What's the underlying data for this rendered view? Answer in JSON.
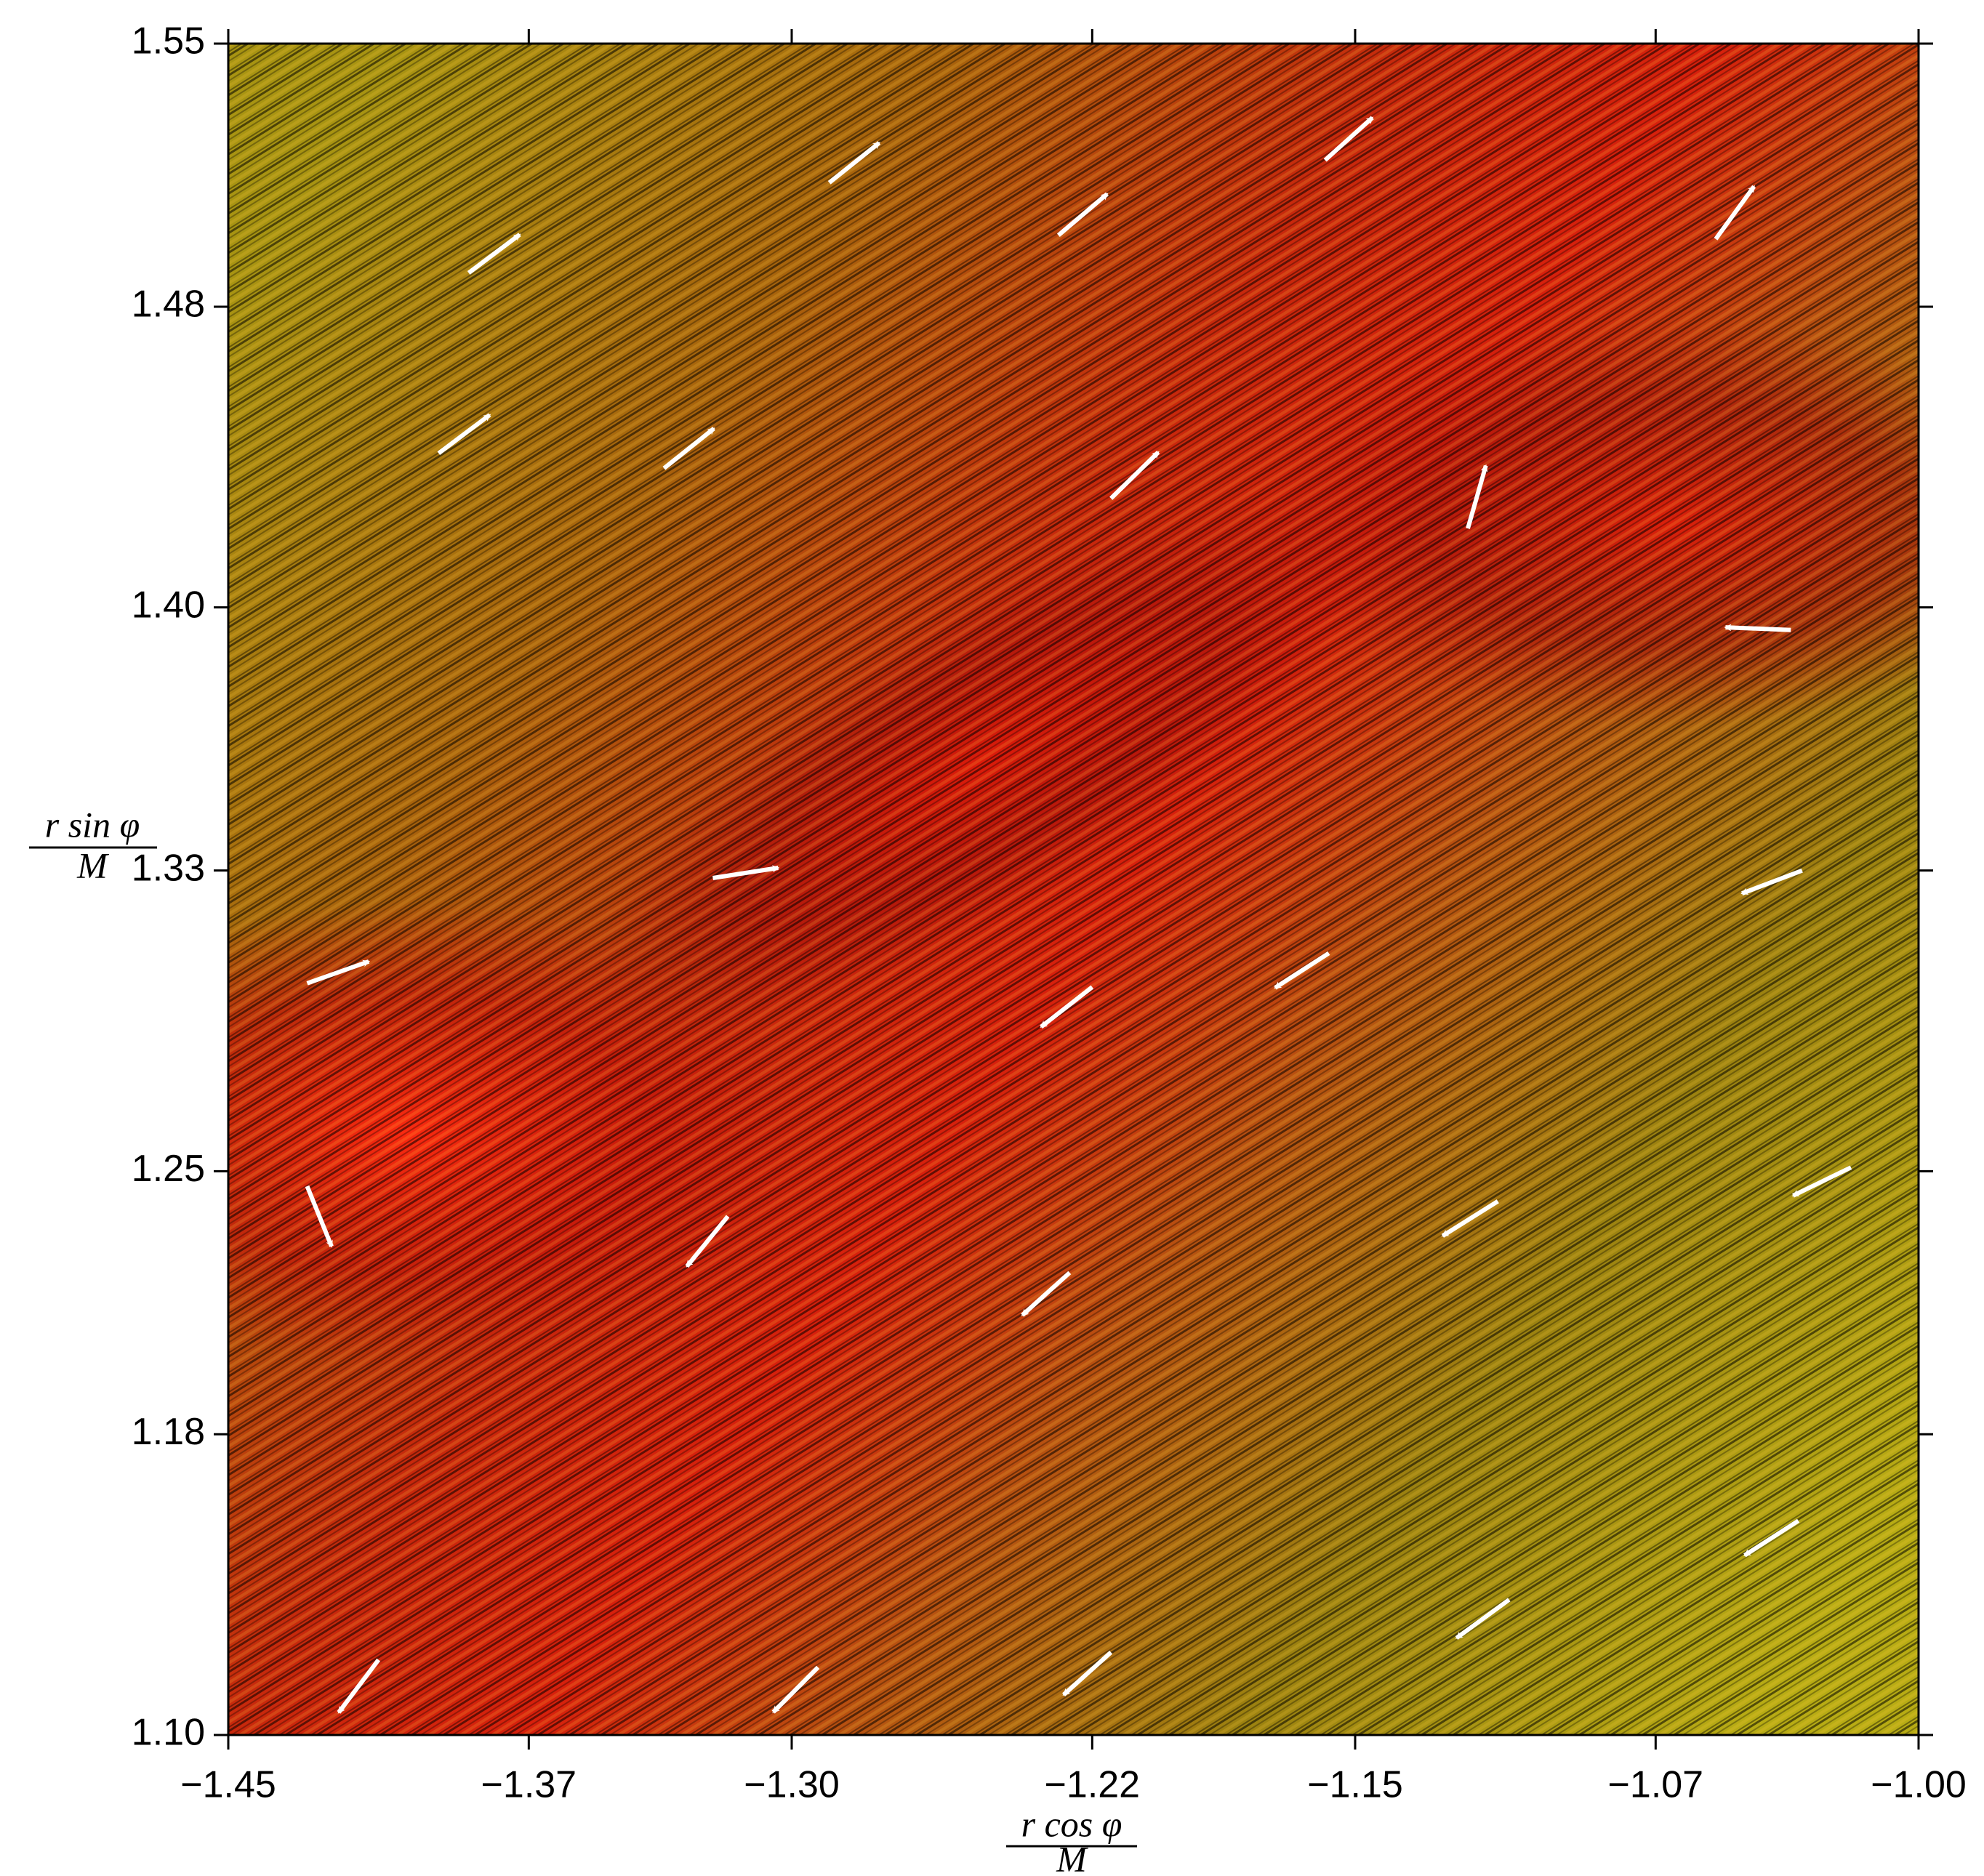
{
  "chart_data": {
    "type": "vector_field",
    "xlabel_numerator": "r cos φ",
    "xlabel_denominator": "M",
    "ylabel_numerator": "r sin φ",
    "ylabel_denominator": "M",
    "xlim": [
      -1.45,
      -1.0
    ],
    "ylim": [
      1.1,
      1.55
    ],
    "xticks": [
      {
        "value": -1.45,
        "label": "−1.45"
      },
      {
        "value": -1.37,
        "label": "−1.37"
      },
      {
        "value": -1.3,
        "label": "−1.30"
      },
      {
        "value": -1.22,
        "label": "−1.22"
      },
      {
        "value": -1.15,
        "label": "−1.15"
      },
      {
        "value": -1.07,
        "label": "−1.07"
      },
      {
        "value": -1.0,
        "label": "−1.00"
      }
    ],
    "yticks": [
      {
        "value": 1.1,
        "label": "1.10"
      },
      {
        "value": 1.18,
        "label": "1.18"
      },
      {
        "value": 1.25,
        "label": "1.25"
      },
      {
        "value": 1.33,
        "label": "1.33"
      },
      {
        "value": 1.4,
        "label": "1.40"
      },
      {
        "value": 1.48,
        "label": "1.48"
      },
      {
        "value": 1.55,
        "label": "1.55"
      }
    ],
    "arrow_color": "#ffffff",
    "arrows": {
      "x": [
        -1.386,
        -1.29,
        -1.229,
        -1.158,
        -1.054,
        -1.394,
        -1.334,
        -1.215,
        -1.12,
        -1.034,
        -1.321,
        -1.429,
        -1.031,
        -1.157,
        -1.22,
        -1.429,
        -1.317,
        -1.112,
        -1.018,
        -1.226,
        -1.032,
        -1.109,
        -1.215,
        -1.293,
        -1.41
      ],
      "y": [
        1.489,
        1.513,
        1.499,
        1.519,
        1.498,
        1.441,
        1.437,
        1.429,
        1.421,
        1.394,
        1.328,
        1.3,
        1.33,
        1.308,
        1.299,
        1.246,
        1.238,
        1.242,
        1.251,
        1.223,
        1.157,
        1.136,
        1.122,
        1.118,
        1.12
      ],
      "u": [
        0.0136,
        0.0133,
        0.013,
        0.0126,
        0.0102,
        0.0136,
        0.0133,
        0.0126,
        0.0048,
        -0.0174,
        0.0174,
        0.0164,
        -0.016,
        -0.0143,
        -0.0136,
        0.0065,
        -0.0109,
        -0.0147,
        -0.0154,
        -0.0126,
        -0.0143,
        -0.014,
        -0.0126,
        -0.0119,
        -0.0106
      ],
      "v": [
        0.0102,
        0.0106,
        0.011,
        0.0113,
        0.014,
        0.0102,
        0.0106,
        0.0123,
        0.0167,
        0.0007,
        0.0027,
        0.0058,
        -0.0061,
        -0.0092,
        -0.0106,
        -0.016,
        -0.0133,
        -0.0092,
        -0.0075,
        -0.0113,
        -0.0092,
        -0.0102,
        -0.0113,
        -0.0119,
        -0.014
      ]
    }
  }
}
